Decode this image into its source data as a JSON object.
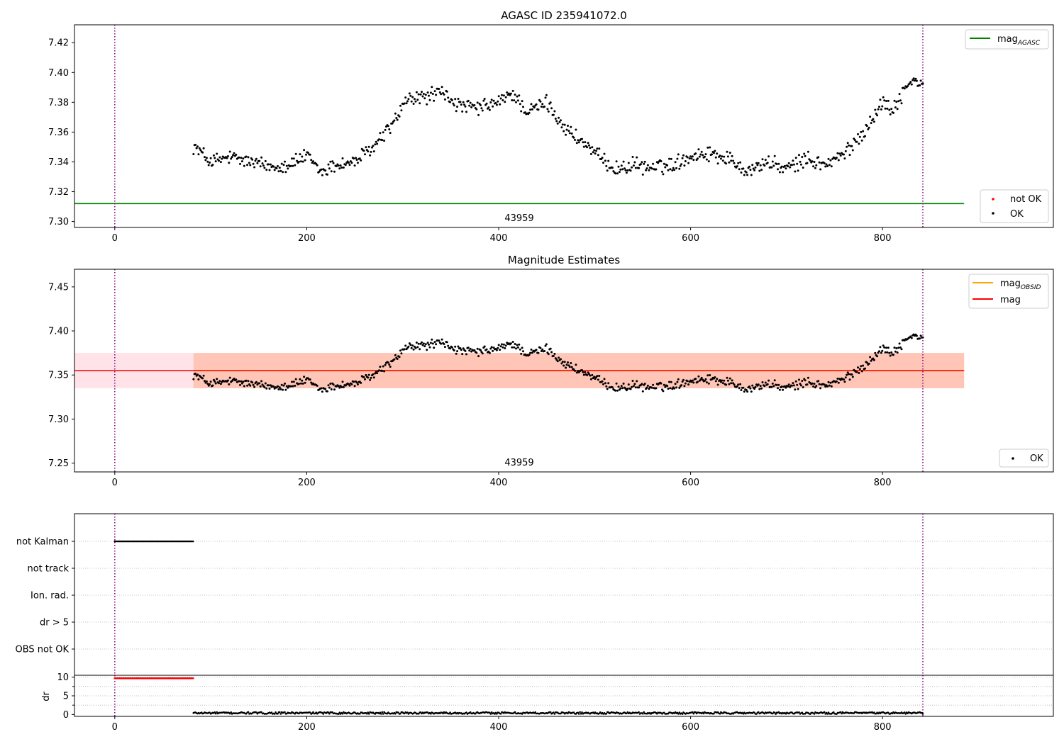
{
  "colors": {
    "agasc_line": "#008000",
    "obsid_line": "#ffa500",
    "mag_line": "#ff0000",
    "mag_band": "#ffc0cb",
    "obsid_band": "#ffa07a",
    "ok_points": "#000000",
    "not_ok_points": "#ff0000",
    "obs_boundary": "#800080",
    "grid": "#b0b0b0"
  },
  "chart_data": [
    {
      "type": "scatter",
      "title": "AGASC ID 235941072.0",
      "xlim": [
        -42,
        978
      ],
      "ylim": [
        7.296,
        7.432
      ],
      "xticks": [
        0,
        200,
        400,
        600,
        800
      ],
      "yticks": [
        7.3,
        7.32,
        7.34,
        7.36,
        7.38,
        7.4,
        7.42
      ],
      "x_range_points": [
        82,
        842
      ],
      "obsid_label": "43959",
      "obsid_label_x": 421,
      "obs_boundaries": [
        0,
        842
      ],
      "mag_agasc": 7.312,
      "mag_agasc_xrange": [
        -42,
        885
      ],
      "legend_lines": [
        "mag",
        "AGASC"
      ],
      "legend_points": [
        "not OK",
        "OK"
      ],
      "series_profile": {
        "x": [
          82,
          100,
          120,
          140,
          160,
          180,
          200,
          215,
          230,
          250,
          270,
          290,
          305,
          320,
          340,
          360,
          380,
          400,
          415,
          430,
          450,
          470,
          490,
          510,
          525,
          540,
          560,
          580,
          600,
          620,
          640,
          660,
          680,
          700,
          720,
          740,
          760,
          780,
          800,
          810,
          830,
          842
        ],
        "y": [
          7.351,
          7.34,
          7.343,
          7.34,
          7.337,
          7.338,
          7.344,
          7.333,
          7.338,
          7.34,
          7.35,
          7.366,
          7.382,
          7.383,
          7.387,
          7.377,
          7.376,
          7.38,
          7.386,
          7.373,
          7.38,
          7.362,
          7.352,
          7.34,
          7.335,
          7.338,
          7.336,
          7.338,
          7.344,
          7.346,
          7.342,
          7.334,
          7.34,
          7.335,
          7.342,
          7.338,
          7.345,
          7.36,
          7.38,
          7.375,
          7.395,
          7.391
        ]
      }
    },
    {
      "type": "scatter",
      "title": "Magnitude Estimates",
      "xlim": [
        -42,
        978
      ],
      "ylim": [
        7.24,
        7.47
      ],
      "xticks": [
        0,
        200,
        400,
        600,
        800
      ],
      "yticks": [
        7.25,
        7.3,
        7.35,
        7.4,
        7.45
      ],
      "obsid_label": "43959",
      "obsid_label_x": 421,
      "obs_boundaries": [
        0,
        842
      ],
      "mag": 7.355,
      "mag_band": [
        7.335,
        7.375
      ],
      "mag_obsid": 7.355,
      "obsid_band": [
        7.335,
        7.375
      ],
      "band_xrange": [
        -42,
        885
      ],
      "obsid_xrange": [
        82,
        885
      ],
      "legend_lines": [
        "mag",
        "OBSID",
        "mag"
      ],
      "legend_points": [
        "OK"
      ]
    },
    {
      "type": "scatter",
      "title": "",
      "xlim": [
        -42,
        978
      ],
      "categories": [
        "not Kalman",
        "not track",
        "Ion. rad.",
        "dr > 5",
        "OBS not OK"
      ],
      "flags": {
        "not Kalman": [
          0,
          82
        ]
      },
      "obs_boundaries": [
        0,
        842
      ]
    },
    {
      "type": "scatter",
      "title": "",
      "ylabel": "dr",
      "xlim": [
        -42,
        978
      ],
      "ylim": [
        -0.5,
        10.5
      ],
      "xticks": [
        0,
        200,
        400,
        600,
        800
      ],
      "yticks": [
        0,
        5,
        10
      ],
      "dr_not_ok_value": 9.7,
      "dr_not_ok_xrange": [
        0,
        82
      ],
      "dr_ok_xrange": [
        82,
        842
      ],
      "dr_ok_mean": 0.4,
      "obs_boundaries": [
        0,
        842
      ]
    }
  ]
}
